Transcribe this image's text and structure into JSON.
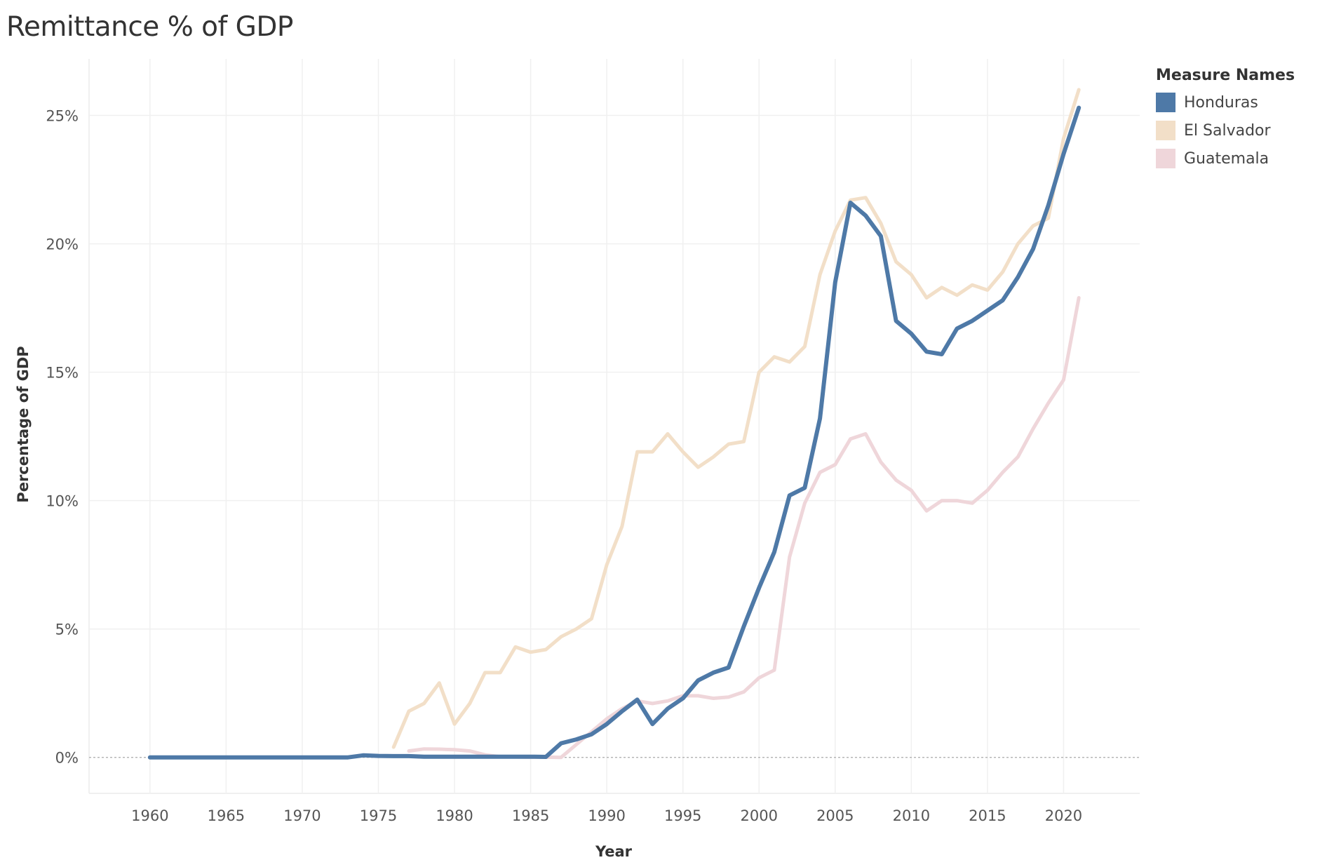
{
  "chart_data": {
    "type": "line",
    "title": "Remittance % of GDP",
    "xlabel": "Year",
    "ylabel": "Percentage of GDP",
    "legend_title": "Measure Names",
    "legend_position": "top-right",
    "xlim": [
      1956,
      2025
    ],
    "ylim": [
      -1.4,
      27.2
    ],
    "x_ticks": [
      1960,
      1965,
      1970,
      1975,
      1980,
      1985,
      1990,
      1995,
      2000,
      2005,
      2010,
      2015,
      2020
    ],
    "y_ticks": [
      0,
      5,
      10,
      15,
      20,
      25
    ],
    "y_tick_labels": [
      "0%",
      "5%",
      "10%",
      "15%",
      "20%",
      "25%"
    ],
    "zero_reference_line": true,
    "grid": true,
    "series": [
      {
        "name": "Honduras",
        "color": "#4e79a7",
        "x": [
          1960,
          1961,
          1962,
          1963,
          1964,
          1965,
          1966,
          1967,
          1968,
          1969,
          1970,
          1971,
          1972,
          1973,
          1974,
          1975,
          1976,
          1977,
          1978,
          1979,
          1980,
          1981,
          1982,
          1983,
          1984,
          1985,
          1986,
          1987,
          1988,
          1989,
          1990,
          1991,
          1992,
          1993,
          1994,
          1995,
          1996,
          1997,
          1998,
          1999,
          2000,
          2001,
          2002,
          2003,
          2004,
          2005,
          2006,
          2007,
          2008,
          2009,
          2010,
          2011,
          2012,
          2013,
          2014,
          2015,
          2016,
          2017,
          2018,
          2019,
          2020,
          2021
        ],
        "y": [
          0,
          0,
          0,
          0,
          0,
          0,
          0,
          0,
          0,
          0,
          0,
          0,
          0,
          0,
          0.08,
          0.06,
          0.05,
          0.05,
          0.03,
          0.03,
          0.03,
          0.03,
          0.03,
          0.03,
          0.03,
          0.03,
          0.02,
          0.55,
          0.7,
          0.9,
          1.3,
          1.8,
          2.25,
          1.3,
          1.9,
          2.3,
          3.0,
          3.3,
          3.5,
          5.1,
          6.6,
          8.0,
          10.2,
          10.5,
          13.2,
          18.5,
          21.6,
          21.1,
          20.3,
          17.0,
          16.5,
          15.8,
          15.7,
          16.7,
          17.0,
          17.4,
          17.8,
          18.7,
          19.8,
          21.5,
          23.5,
          25.3
        ]
      },
      {
        "name": "El Salvador",
        "color": "#f2dfc8",
        "x": [
          1976,
          1977,
          1978,
          1979,
          1980,
          1981,
          1982,
          1983,
          1984,
          1985,
          1986,
          1987,
          1988,
          1989,
          1990,
          1991,
          1992,
          1993,
          1994,
          1995,
          1996,
          1997,
          1998,
          1999,
          2000,
          2001,
          2002,
          2003,
          2004,
          2005,
          2006,
          2007,
          2008,
          2009,
          2010,
          2011,
          2012,
          2013,
          2014,
          2015,
          2016,
          2017,
          2018,
          2019,
          2020,
          2021
        ],
        "y": [
          0.4,
          1.8,
          2.1,
          2.9,
          1.3,
          2.1,
          3.3,
          3.3,
          4.3,
          4.1,
          4.2,
          4.7,
          5.0,
          5.4,
          7.5,
          9.0,
          11.9,
          11.9,
          12.6,
          11.9,
          11.3,
          11.7,
          12.2,
          12.3,
          15.0,
          15.6,
          15.4,
          16.0,
          18.8,
          20.5,
          21.7,
          21.8,
          20.8,
          19.3,
          18.8,
          17.9,
          18.3,
          18.0,
          18.4,
          18.2,
          18.9,
          20.0,
          20.7,
          21.0,
          24.1,
          26.0
        ]
      },
      {
        "name": "Guatemala",
        "color": "#efd6da",
        "x": [
          1977,
          1978,
          1979,
          1980,
          1981,
          1982,
          1983,
          1984,
          1985,
          1986,
          1987,
          1988,
          1989,
          1990,
          1991,
          1992,
          1993,
          1994,
          1995,
          1996,
          1997,
          1998,
          1999,
          2000,
          2001,
          2002,
          2003,
          2004,
          2005,
          2006,
          2007,
          2008,
          2009,
          2010,
          2011,
          2012,
          2013,
          2014,
          2015,
          2016,
          2017,
          2018,
          2019,
          2020,
          2021
        ],
        "y": [
          0.25,
          0.33,
          0.32,
          0.3,
          0.25,
          0.1,
          0.03,
          0.02,
          0.01,
          0.01,
          0.0,
          0.5,
          1.0,
          1.5,
          1.9,
          2.2,
          2.1,
          2.2,
          2.4,
          2.4,
          2.3,
          2.35,
          2.55,
          3.1,
          3.4,
          7.8,
          9.9,
          11.1,
          11.4,
          12.4,
          12.6,
          11.5,
          10.8,
          10.4,
          9.6,
          10.0,
          10.0,
          9.9,
          10.4,
          11.1,
          11.7,
          12.8,
          13.8,
          14.7,
          17.9
        ]
      }
    ]
  }
}
